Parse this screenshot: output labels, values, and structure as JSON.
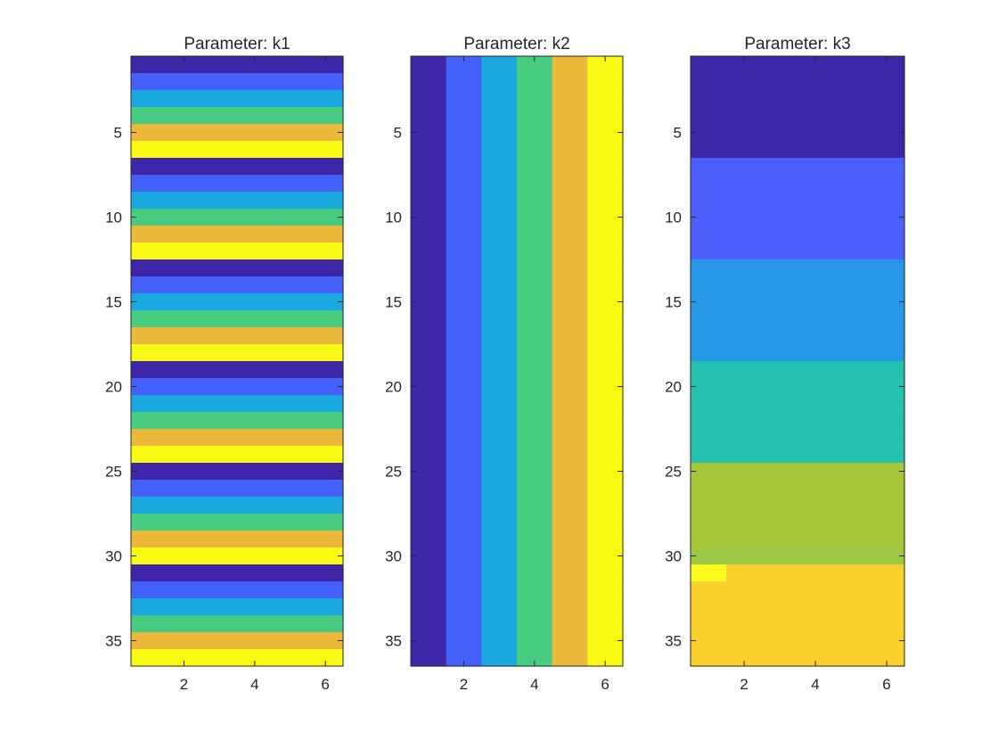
{
  "colormap": [
    "#3e26a8",
    "#4361f8",
    "#1aaadf",
    "#47cc81",
    "#ecb93a",
    "#f9fa14"
  ],
  "k3_palette": {
    "band1": "#3e26a8",
    "band2": "#4a5ffc",
    "band3": "#2798e6",
    "band4": "#23c1ae",
    "band5": "#a7c63a",
    "band6": "#fbd12d",
    "band5_alt": "#9cca44",
    "band6_alt": "#fdfa1c"
  },
  "chart_data": [
    {
      "type": "heatmap",
      "title": "Parameter: k1",
      "rows": 36,
      "cols": 6,
      "pattern": "value = ((row-1) mod 6) + 1, constant across columns",
      "xlim": [
        0.5,
        6.5
      ],
      "ylim": [
        0.5,
        36.5
      ],
      "y_direction": "reversed",
      "xticks": [
        2,
        4,
        6
      ],
      "yticks": [
        5,
        10,
        15,
        20,
        25,
        30,
        35
      ]
    },
    {
      "type": "heatmap",
      "title": "Parameter: k2",
      "rows": 36,
      "cols": 6,
      "pattern": "value = column index (1..6), constant across rows",
      "xlim": [
        0.5,
        6.5
      ],
      "ylim": [
        0.5,
        36.5
      ],
      "y_direction": "reversed",
      "xticks": [
        2,
        4,
        6
      ],
      "yticks": [
        5,
        10,
        15,
        20,
        25,
        30,
        35
      ]
    },
    {
      "type": "heatmap",
      "title": "Parameter: k3",
      "rows": 36,
      "cols": 6,
      "pattern": "value = ceil(row / 6) (1..6), constant across columns",
      "xlim": [
        0.5,
        6.5
      ],
      "ylim": [
        0.5,
        36.5
      ],
      "y_direction": "reversed",
      "xticks": [
        2,
        4,
        6
      ],
      "yticks": [
        5,
        10,
        15,
        20,
        25,
        30,
        35
      ]
    }
  ]
}
